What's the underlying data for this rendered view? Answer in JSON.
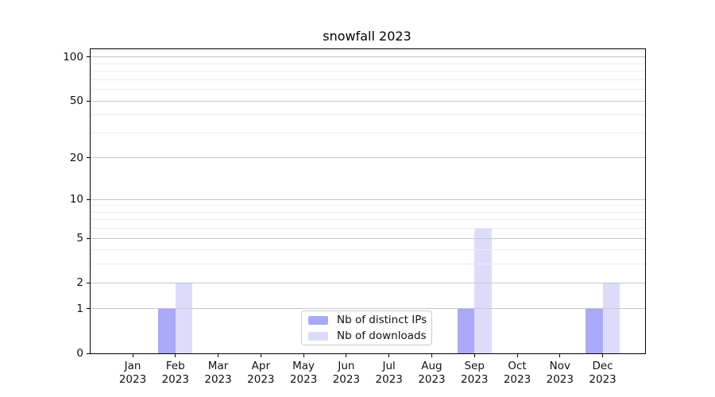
{
  "chart_data": {
    "type": "bar",
    "title": "snowfall 2023",
    "categories": [
      "Jan 2023",
      "Feb 2023",
      "Mar 2023",
      "Apr 2023",
      "May 2023",
      "Jun 2023",
      "Jul 2023",
      "Aug 2023",
      "Sep 2023",
      "Oct 2023",
      "Nov 2023",
      "Dec 2023"
    ],
    "months": [
      "Jan",
      "Feb",
      "Mar",
      "Apr",
      "May",
      "Jun",
      "Jul",
      "Aug",
      "Sep",
      "Oct",
      "Nov",
      "Dec"
    ],
    "year": "2023",
    "series": [
      {
        "name": "Nb of distinct IPs",
        "color": "#a9a9f7",
        "values": [
          0,
          1,
          0,
          0,
          0,
          0,
          0,
          0,
          1,
          0,
          0,
          1
        ]
      },
      {
        "name": "Nb of downloads",
        "color": "#dcdcfa",
        "values": [
          0,
          2,
          0,
          0,
          0,
          0,
          0,
          0,
          6,
          0,
          0,
          2
        ]
      }
    ],
    "yscale": "symlog",
    "ylim": [
      0,
      113
    ],
    "y_major_ticks": [
      0,
      1,
      2,
      5,
      10,
      20,
      50,
      100
    ],
    "y_minor_ticks": [
      3,
      4,
      6,
      7,
      8,
      9,
      30,
      40,
      60,
      70,
      80,
      90,
      110
    ],
    "grid": true,
    "legend_position": "lower center"
  },
  "colors": {
    "bar_distinct_ips": "#a9a9f7",
    "bar_downloads": "#dcdcfa",
    "major_grid": "#c6c6c6",
    "minor_grid": "#ededed",
    "axis": "#000000",
    "background": "#ffffff"
  }
}
